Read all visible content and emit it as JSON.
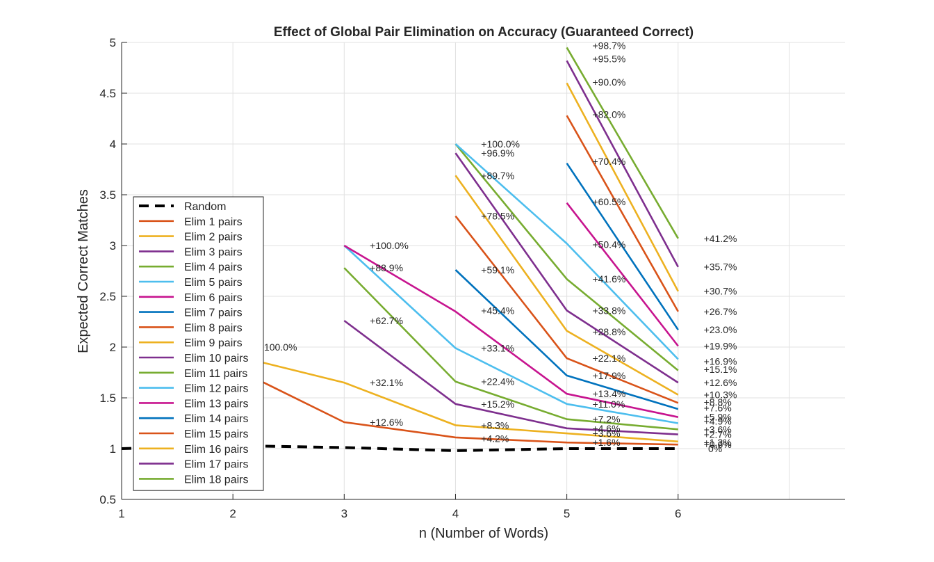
{
  "chart_data": {
    "type": "line",
    "title": "Effect of Global Pair Elimination on Accuracy (Guaranteed Correct)",
    "xlabel": "n (Number of Words)",
    "ylabel": "Expected Correct Matches",
    "xlim": [
      1,
      7.5
    ],
    "ylim": [
      0.5,
      5
    ],
    "xticks": [
      "1",
      "2",
      "3",
      "4",
      "5",
      "6"
    ],
    "yticks": [
      "0.5",
      "1",
      "1.5",
      "2",
      "2.5",
      "3",
      "3.5",
      "4",
      "4.5",
      "5"
    ],
    "grid": true,
    "legend_position": "bottom-left",
    "series": [
      {
        "name": "Random",
        "color": "#000000",
        "dashed": true,
        "x": [
          1,
          2,
          3,
          4,
          5,
          6
        ],
        "y": [
          1.0,
          1.03,
          1.01,
          0.98,
          1.0,
          1.0
        ]
      },
      {
        "name": "Elim 1 pairs",
        "color": "#D95319",
        "x": [
          2,
          3,
          4,
          5,
          6
        ],
        "y": [
          1.8,
          1.26,
          1.11,
          1.06,
          1.04
        ]
      },
      {
        "name": "Elim 2 pairs",
        "color": "#EDB120",
        "x": [
          2,
          3,
          4,
          5,
          6
        ],
        "y": [
          1.92,
          1.65,
          1.23,
          1.15,
          1.07
        ]
      },
      {
        "name": "Elim 3 pairs",
        "color": "#7E2F8E",
        "x": [
          3,
          4,
          5,
          6
        ],
        "y": [
          2.26,
          1.44,
          1.2,
          1.14
        ]
      },
      {
        "name": "Elim 4 pairs",
        "color": "#77AC30",
        "x": [
          3,
          4,
          5,
          6
        ],
        "y": [
          2.78,
          1.66,
          1.29,
          1.19
        ]
      },
      {
        "name": "Elim 5 pairs",
        "color": "#4DBEEE",
        "x": [
          3,
          4,
          5,
          6
        ],
        "y": [
          3.0,
          1.99,
          1.44,
          1.25
        ]
      },
      {
        "name": "Elim 6 pairs",
        "color": "#C7148F",
        "x": [
          3,
          4,
          5,
          6
        ],
        "y": [
          3.0,
          2.35,
          1.54,
          1.31
        ]
      },
      {
        "name": "Elim 7 pairs",
        "color": "#0072BD",
        "x": [
          4,
          5,
          6
        ],
        "y": [
          2.76,
          1.72,
          1.39
        ]
      },
      {
        "name": "Elim 8 pairs",
        "color": "#D95319",
        "x": [
          4,
          5,
          6
        ],
        "y": [
          3.29,
          1.89,
          1.45
        ]
      },
      {
        "name": "Elim 9 pairs",
        "color": "#EDB120",
        "x": [
          4,
          5,
          6
        ],
        "y": [
          3.69,
          2.16,
          1.53
        ]
      },
      {
        "name": "Elim 10 pairs",
        "color": "#7E2F8E",
        "x": [
          4,
          5,
          6
        ],
        "y": [
          3.91,
          2.36,
          1.65
        ]
      },
      {
        "name": "Elim 11 pairs",
        "color": "#77AC30",
        "x": [
          4,
          5,
          6
        ],
        "y": [
          4.0,
          2.67,
          1.77
        ]
      },
      {
        "name": "Elim 12 pairs",
        "color": "#4DBEEE",
        "x": [
          4,
          5,
          6
        ],
        "y": [
          4.0,
          3.02,
          1.88
        ]
      },
      {
        "name": "Elim 13 pairs",
        "color": "#C7148F",
        "x": [
          5,
          6
        ],
        "y": [
          3.42,
          2.01
        ]
      },
      {
        "name": "Elim 14 pairs",
        "color": "#0072BD",
        "x": [
          5,
          6
        ],
        "y": [
          3.81,
          2.17
        ]
      },
      {
        "name": "Elim 15 pairs",
        "color": "#D95319",
        "x": [
          5,
          6
        ],
        "y": [
          4.28,
          2.35
        ]
      },
      {
        "name": "Elim 16 pairs",
        "color": "#EDB120",
        "x": [
          5,
          6
        ],
        "y": [
          4.6,
          2.55
        ]
      },
      {
        "name": "Elim 17 pairs",
        "color": "#7E2F8E",
        "x": [
          5,
          6
        ],
        "y": [
          4.82,
          2.79
        ]
      },
      {
        "name": "Elim 18 pairs",
        "color": "#77AC30",
        "x": [
          5,
          6
        ],
        "y": [
          4.95,
          3.07
        ]
      }
    ],
    "annotations": [
      {
        "text": "100.0%",
        "x": 2.28,
        "y": 2.0
      },
      {
        "text": "+100.0%",
        "x": 3.23,
        "y": 3.0
      },
      {
        "text": "+88.9%",
        "x": 3.23,
        "y": 2.78
      },
      {
        "text": "+62.7%",
        "x": 3.23,
        "y": 2.26
      },
      {
        "text": "+32.1%",
        "x": 3.23,
        "y": 1.65
      },
      {
        "text": "+12.6%",
        "x": 3.23,
        "y": 1.26
      },
      {
        "text": "+100.0%",
        "x": 4.23,
        "y": 4.0
      },
      {
        "text": "+96.9%",
        "x": 4.23,
        "y": 3.91
      },
      {
        "text": "+89.7%",
        "x": 4.23,
        "y": 3.69
      },
      {
        "text": "+78.5%",
        "x": 4.23,
        "y": 3.29
      },
      {
        "text": "+59.1%",
        "x": 4.23,
        "y": 2.76
      },
      {
        "text": "+45.4%",
        "x": 4.23,
        "y": 2.36
      },
      {
        "text": "+33.1%",
        "x": 4.23,
        "y": 1.99
      },
      {
        "text": "+22.4%",
        "x": 4.23,
        "y": 1.66
      },
      {
        "text": "+15.2%",
        "x": 4.23,
        "y": 1.44
      },
      {
        "text": "+8.3%",
        "x": 4.23,
        "y": 1.23
      },
      {
        "text": "+4.2%",
        "x": 4.23,
        "y": 1.1
      },
      {
        "text": "+98.7%",
        "x": 5.23,
        "y": 4.97
      },
      {
        "text": "+95.5%",
        "x": 5.23,
        "y": 4.84
      },
      {
        "text": "+90.0%",
        "x": 5.23,
        "y": 4.61
      },
      {
        "text": "+82.0%",
        "x": 5.23,
        "y": 4.29
      },
      {
        "text": "+70.4%",
        "x": 5.23,
        "y": 3.83
      },
      {
        "text": "+60.5%",
        "x": 5.23,
        "y": 3.43
      },
      {
        "text": "+50.4%",
        "x": 5.23,
        "y": 3.01
      },
      {
        "text": "+41.6%",
        "x": 5.23,
        "y": 2.67
      },
      {
        "text": "+33.8%",
        "x": 5.23,
        "y": 2.36
      },
      {
        "text": "+28.8%",
        "x": 5.23,
        "y": 2.15
      },
      {
        "text": "+22.1%",
        "x": 5.23,
        "y": 1.89
      },
      {
        "text": "+17.9%",
        "x": 5.23,
        "y": 1.72
      },
      {
        "text": "+13.4%",
        "x": 5.23,
        "y": 1.54
      },
      {
        "text": "+11.0%",
        "x": 5.23,
        "y": 1.44
      },
      {
        "text": "+7.2%",
        "x": 5.23,
        "y": 1.29
      },
      {
        "text": "+4.6%",
        "x": 5.23,
        "y": 1.2
      },
      {
        "text": "+3.6%",
        "x": 5.23,
        "y": 1.15
      },
      {
        "text": "+1.6%",
        "x": 5.23,
        "y": 1.06
      },
      {
        "text": "+41.2%",
        "x": 6.23,
        "y": 3.07
      },
      {
        "text": "+35.7%",
        "x": 6.23,
        "y": 2.79
      },
      {
        "text": "+30.7%",
        "x": 6.23,
        "y": 2.55
      },
      {
        "text": "+26.7%",
        "x": 6.23,
        "y": 2.35
      },
      {
        "text": "+23.0%",
        "x": 6.23,
        "y": 2.17
      },
      {
        "text": "+19.9%",
        "x": 6.23,
        "y": 2.01
      },
      {
        "text": "+16.9%",
        "x": 6.23,
        "y": 1.86
      },
      {
        "text": "+15.1%",
        "x": 6.23,
        "y": 1.78
      },
      {
        "text": "+12.6%",
        "x": 6.23,
        "y": 1.65
      },
      {
        "text": "+10.3%",
        "x": 6.23,
        "y": 1.53
      },
      {
        "text": "+8.8%",
        "x": 6.23,
        "y": 1.46
      },
      {
        "text": "+7.6%",
        "x": 6.23,
        "y": 1.4
      },
      {
        "text": "+5.9%",
        "x": 6.23,
        "y": 1.31
      },
      {
        "text": "+4.9%",
        "x": 6.23,
        "y": 1.27
      },
      {
        "text": "+3.6%",
        "x": 6.23,
        "y": 1.19
      },
      {
        "text": "+2.7%",
        "x": 6.23,
        "y": 1.14
      },
      {
        "text": "+1.3%",
        "x": 6.23,
        "y": 1.06
      },
      {
        "text": "+0.6%",
        "x": 6.23,
        "y": 1.04
      },
      {
        "text": "0%",
        "x": 6.27,
        "y": 1.0
      }
    ]
  }
}
